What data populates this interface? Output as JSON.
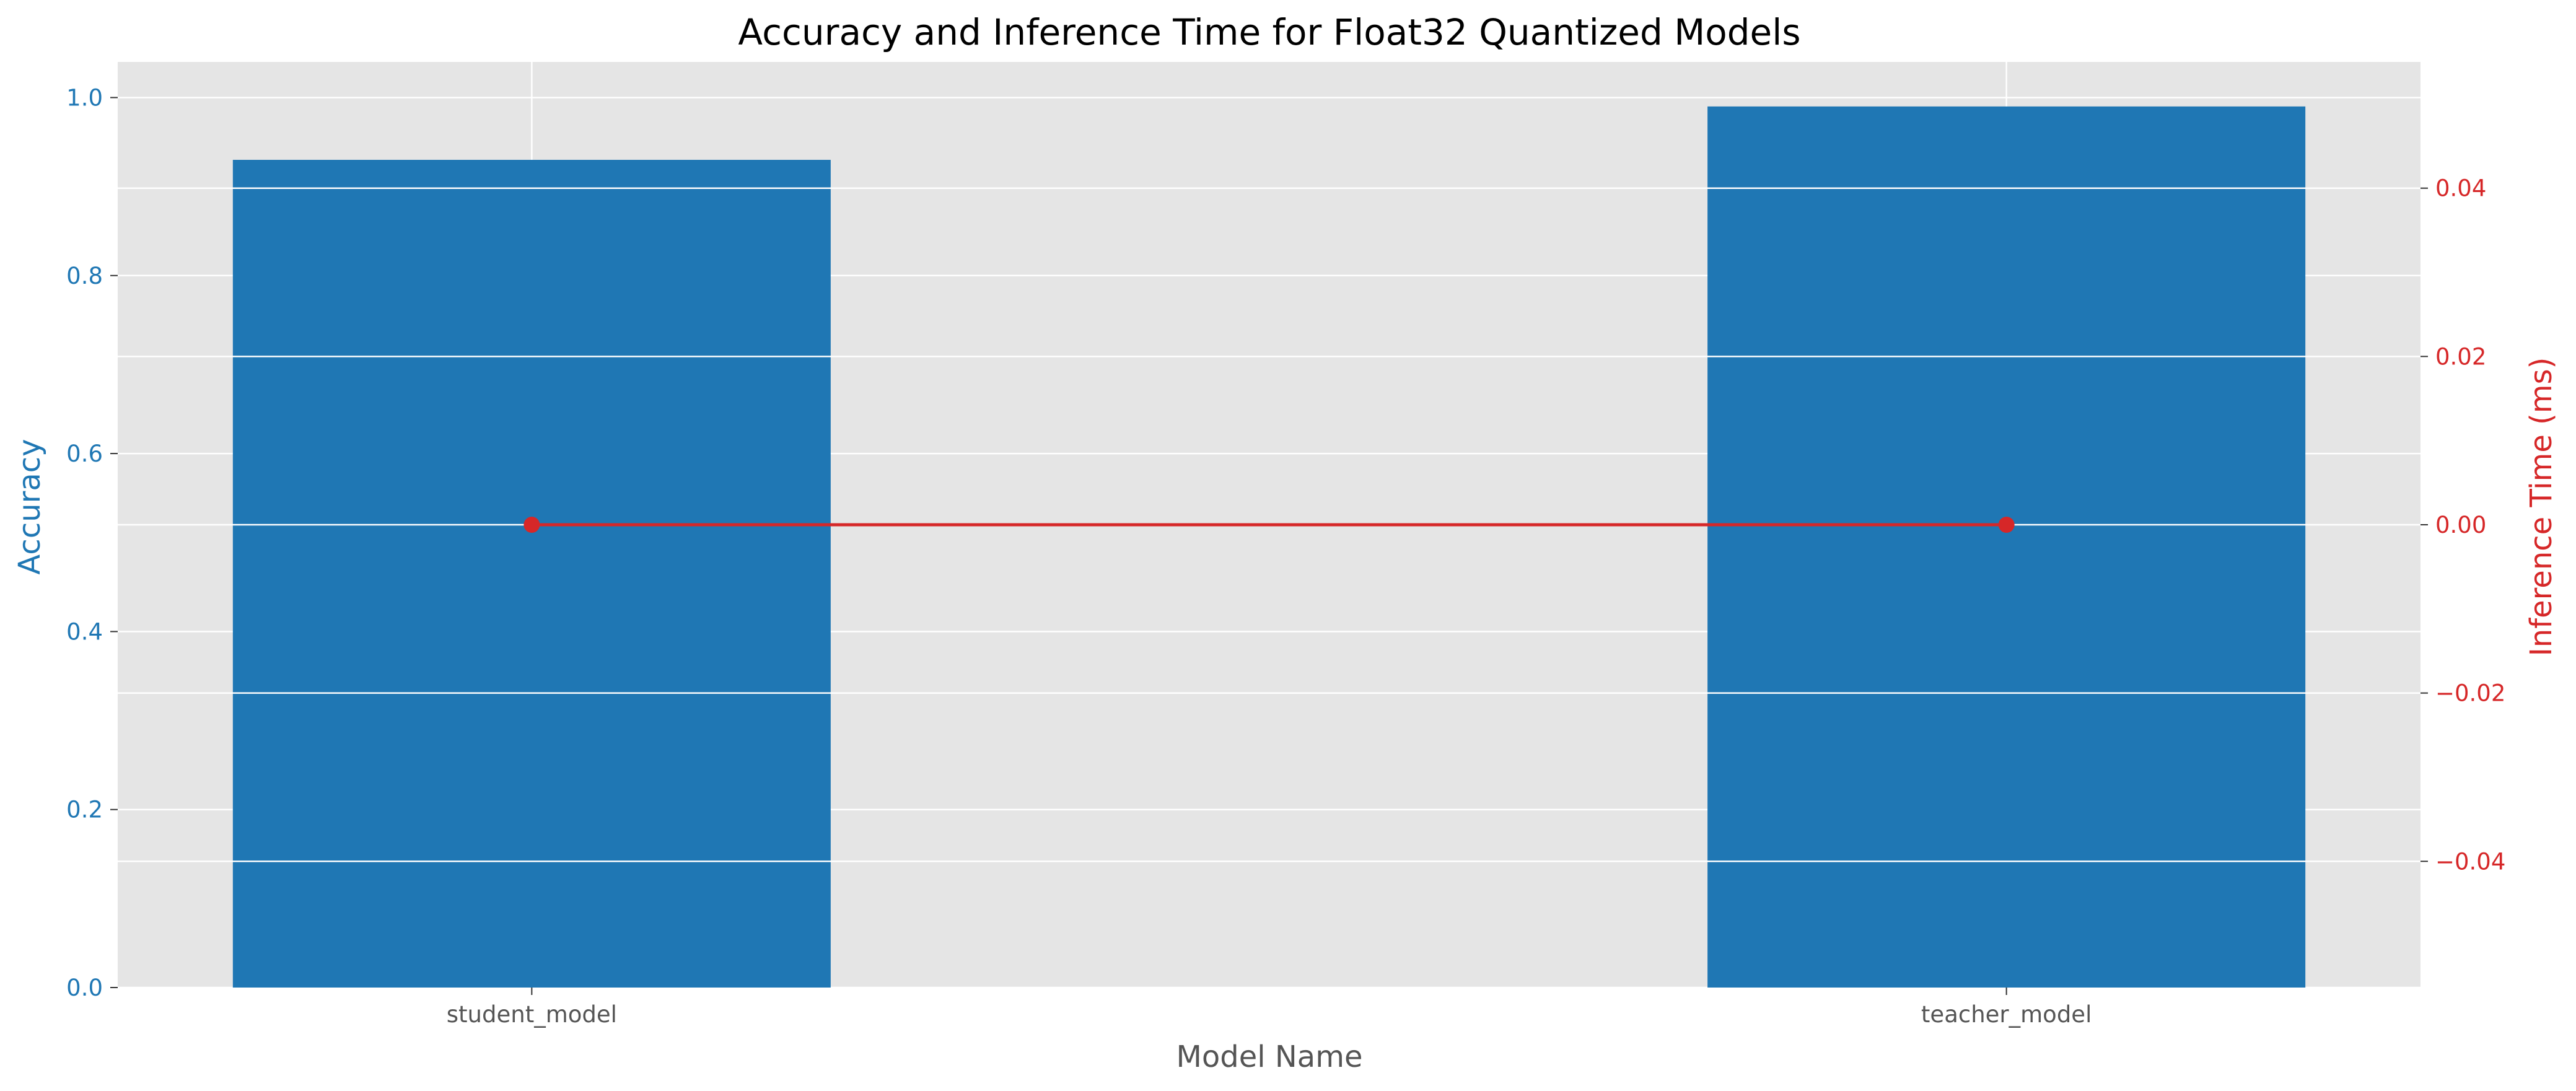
{
  "chart_data": {
    "type": "bar",
    "title": "Accuracy and Inference Time for Float32 Quantized Models",
    "xlabel": "Model Name",
    "categories": [
      "student_model",
      "teacher_model"
    ],
    "left_axis": {
      "label": "Accuracy",
      "color": "#1f77b4",
      "ylim": [
        0.0,
        1.04
      ],
      "ticks": [
        0.0,
        0.2,
        0.4,
        0.6,
        0.8,
        1.0
      ],
      "tick_labels": [
        "0.0",
        "0.2",
        "0.4",
        "0.6",
        "0.8",
        "1.0"
      ]
    },
    "right_axis": {
      "label": "Inference Time (ms)",
      "color": "#d62728",
      "ylim": [
        -0.055,
        0.055
      ],
      "ticks": [
        -0.04,
        -0.02,
        0.0,
        0.02,
        0.04
      ],
      "tick_labels": [
        "−0.04",
        "−0.02",
        "0.00",
        "0.02",
        "0.04"
      ]
    },
    "series": [
      {
        "axis": "left",
        "type": "bar",
        "color": "#1f77b4",
        "values": [
          0.93,
          0.99
        ]
      },
      {
        "axis": "right",
        "type": "line",
        "color": "#d62728",
        "marker": "circle",
        "values": [
          0.0,
          0.0
        ]
      }
    ],
    "grid": true,
    "background": "#e5e5e5",
    "grid_color": "#ffffff"
  }
}
